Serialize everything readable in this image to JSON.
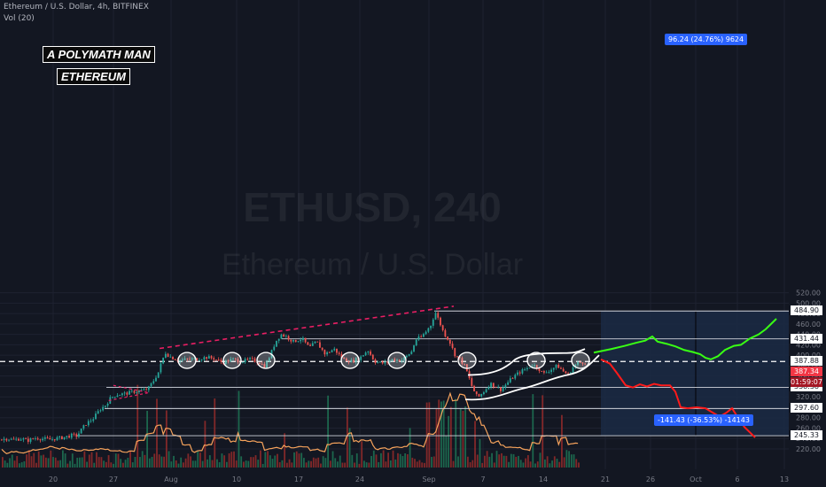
{
  "header": {
    "symbol_line": "Ethereum / U.S. Dollar, 4h, BITFINEX",
    "volume_line": "Vol (20)"
  },
  "author": {
    "line1": "A POLYMATH MAN",
    "line2": "ETHEREUM"
  },
  "watermark": {
    "ticker": "ETHUSD, 240",
    "name": "Ethereum / U.S. Dollar"
  },
  "measures": {
    "upper": "96.24 (24.76%) 9624",
    "lower": "-141.43 (-36.53%) -14143"
  },
  "colors": {
    "up": "#26a69a",
    "down": "#ef5350",
    "trendline": "#e91e63",
    "bull_path": "#39ff14",
    "bear_path": "#ff1a1a",
    "level_line": "#d1d4dc",
    "dashed_level": "#ef5350",
    "projection_box": "#1b2a44",
    "current_price": "#f23645",
    "countdown": "#a41624",
    "volume_ma": "#f7a35c"
  },
  "chart_data": {
    "type": "candlestick",
    "axes": {
      "y_ticks": [
        220.0,
        240.0,
        260.0,
        280.0,
        300.0,
        320.0,
        340.0,
        360.0,
        380.0,
        400.0,
        420.0,
        440.0,
        460.0,
        480.0,
        500.0,
        520.0
      ],
      "x_ticks": [
        "20",
        "27",
        "Aug",
        "10",
        "17",
        "24",
        "Sep",
        "7",
        "14",
        "21",
        "26",
        "Oct",
        "6",
        "13"
      ],
      "ylim": [
        212,
        522
      ]
    },
    "levels": [
      {
        "value": 484.9,
        "label": "484.90"
      },
      {
        "value": 431.44,
        "label": "431.44"
      },
      {
        "value": 338.38,
        "label": "338.38"
      },
      {
        "value": 297.6,
        "label": "297.60"
      },
      {
        "value": 245.33,
        "label": "245.33"
      }
    ],
    "dashed_level": {
      "value": 387.88,
      "label": "387.88"
    },
    "current_price": {
      "value": 387.34,
      "label": "387.34",
      "countdown": "01:59:07"
    },
    "anchor_points": [
      [
        0,
        238
      ],
      [
        8,
        240
      ],
      [
        14,
        237
      ],
      [
        22,
        240
      ],
      [
        30,
        236
      ],
      [
        40,
        241
      ],
      [
        55,
        238
      ],
      [
        70,
        242
      ],
      [
        80,
        246
      ],
      [
        86,
        245
      ],
      [
        90,
        255
      ],
      [
        96,
        268
      ],
      [
        104,
        278
      ],
      [
        112,
        296
      ],
      [
        118,
        304
      ],
      [
        124,
        318
      ],
      [
        130,
        324
      ],
      [
        140,
        326
      ],
      [
        150,
        330
      ],
      [
        160,
        332
      ],
      [
        166,
        335
      ],
      [
        172,
        350
      ],
      [
        178,
        368
      ],
      [
        182,
        390
      ],
      [
        186,
        405
      ],
      [
        190,
        398
      ],
      [
        200,
        390
      ],
      [
        212,
        392
      ],
      [
        222,
        393
      ],
      [
        232,
        396
      ],
      [
        240,
        394
      ],
      [
        250,
        386
      ],
      [
        262,
        392
      ],
      [
        272,
        388
      ],
      [
        282,
        392
      ],
      [
        292,
        386
      ],
      [
        298,
        378
      ],
      [
        304,
        400
      ],
      [
        310,
        426
      ],
      [
        316,
        440
      ],
      [
        322,
        436
      ],
      [
        330,
        426
      ],
      [
        340,
        432
      ],
      [
        348,
        414
      ],
      [
        356,
        426
      ],
      [
        366,
        402
      ],
      [
        376,
        412
      ],
      [
        386,
        393
      ],
      [
        396,
        388
      ],
      [
        406,
        396
      ],
      [
        414,
        410
      ],
      [
        422,
        388
      ],
      [
        432,
        384
      ],
      [
        442,
        392
      ],
      [
        452,
        390
      ],
      [
        458,
        398
      ],
      [
        464,
        408
      ],
      [
        468,
        430
      ],
      [
        474,
        434
      ],
      [
        480,
        446
      ],
      [
        486,
        460
      ],
      [
        490,
        484
      ],
      [
        494,
        468
      ],
      [
        500,
        442
      ],
      [
        506,
        428
      ],
      [
        512,
        402
      ],
      [
        518,
        392
      ],
      [
        524,
        378
      ],
      [
        532,
        338
      ],
      [
        538,
        318
      ],
      [
        546,
        332
      ],
      [
        552,
        346
      ],
      [
        558,
        340
      ],
      [
        564,
        334
      ],
      [
        570,
        344
      ],
      [
        578,
        358
      ],
      [
        586,
        368
      ],
      [
        594,
        375
      ],
      [
        600,
        382
      ],
      [
        606,
        376
      ],
      [
        612,
        364
      ],
      [
        620,
        372
      ],
      [
        628,
        380
      ],
      [
        634,
        370
      ],
      [
        640,
        362
      ],
      [
        646,
        378
      ],
      [
        652,
        386
      ],
      [
        658,
        387
      ]
    ],
    "volume_bars": 240
  }
}
